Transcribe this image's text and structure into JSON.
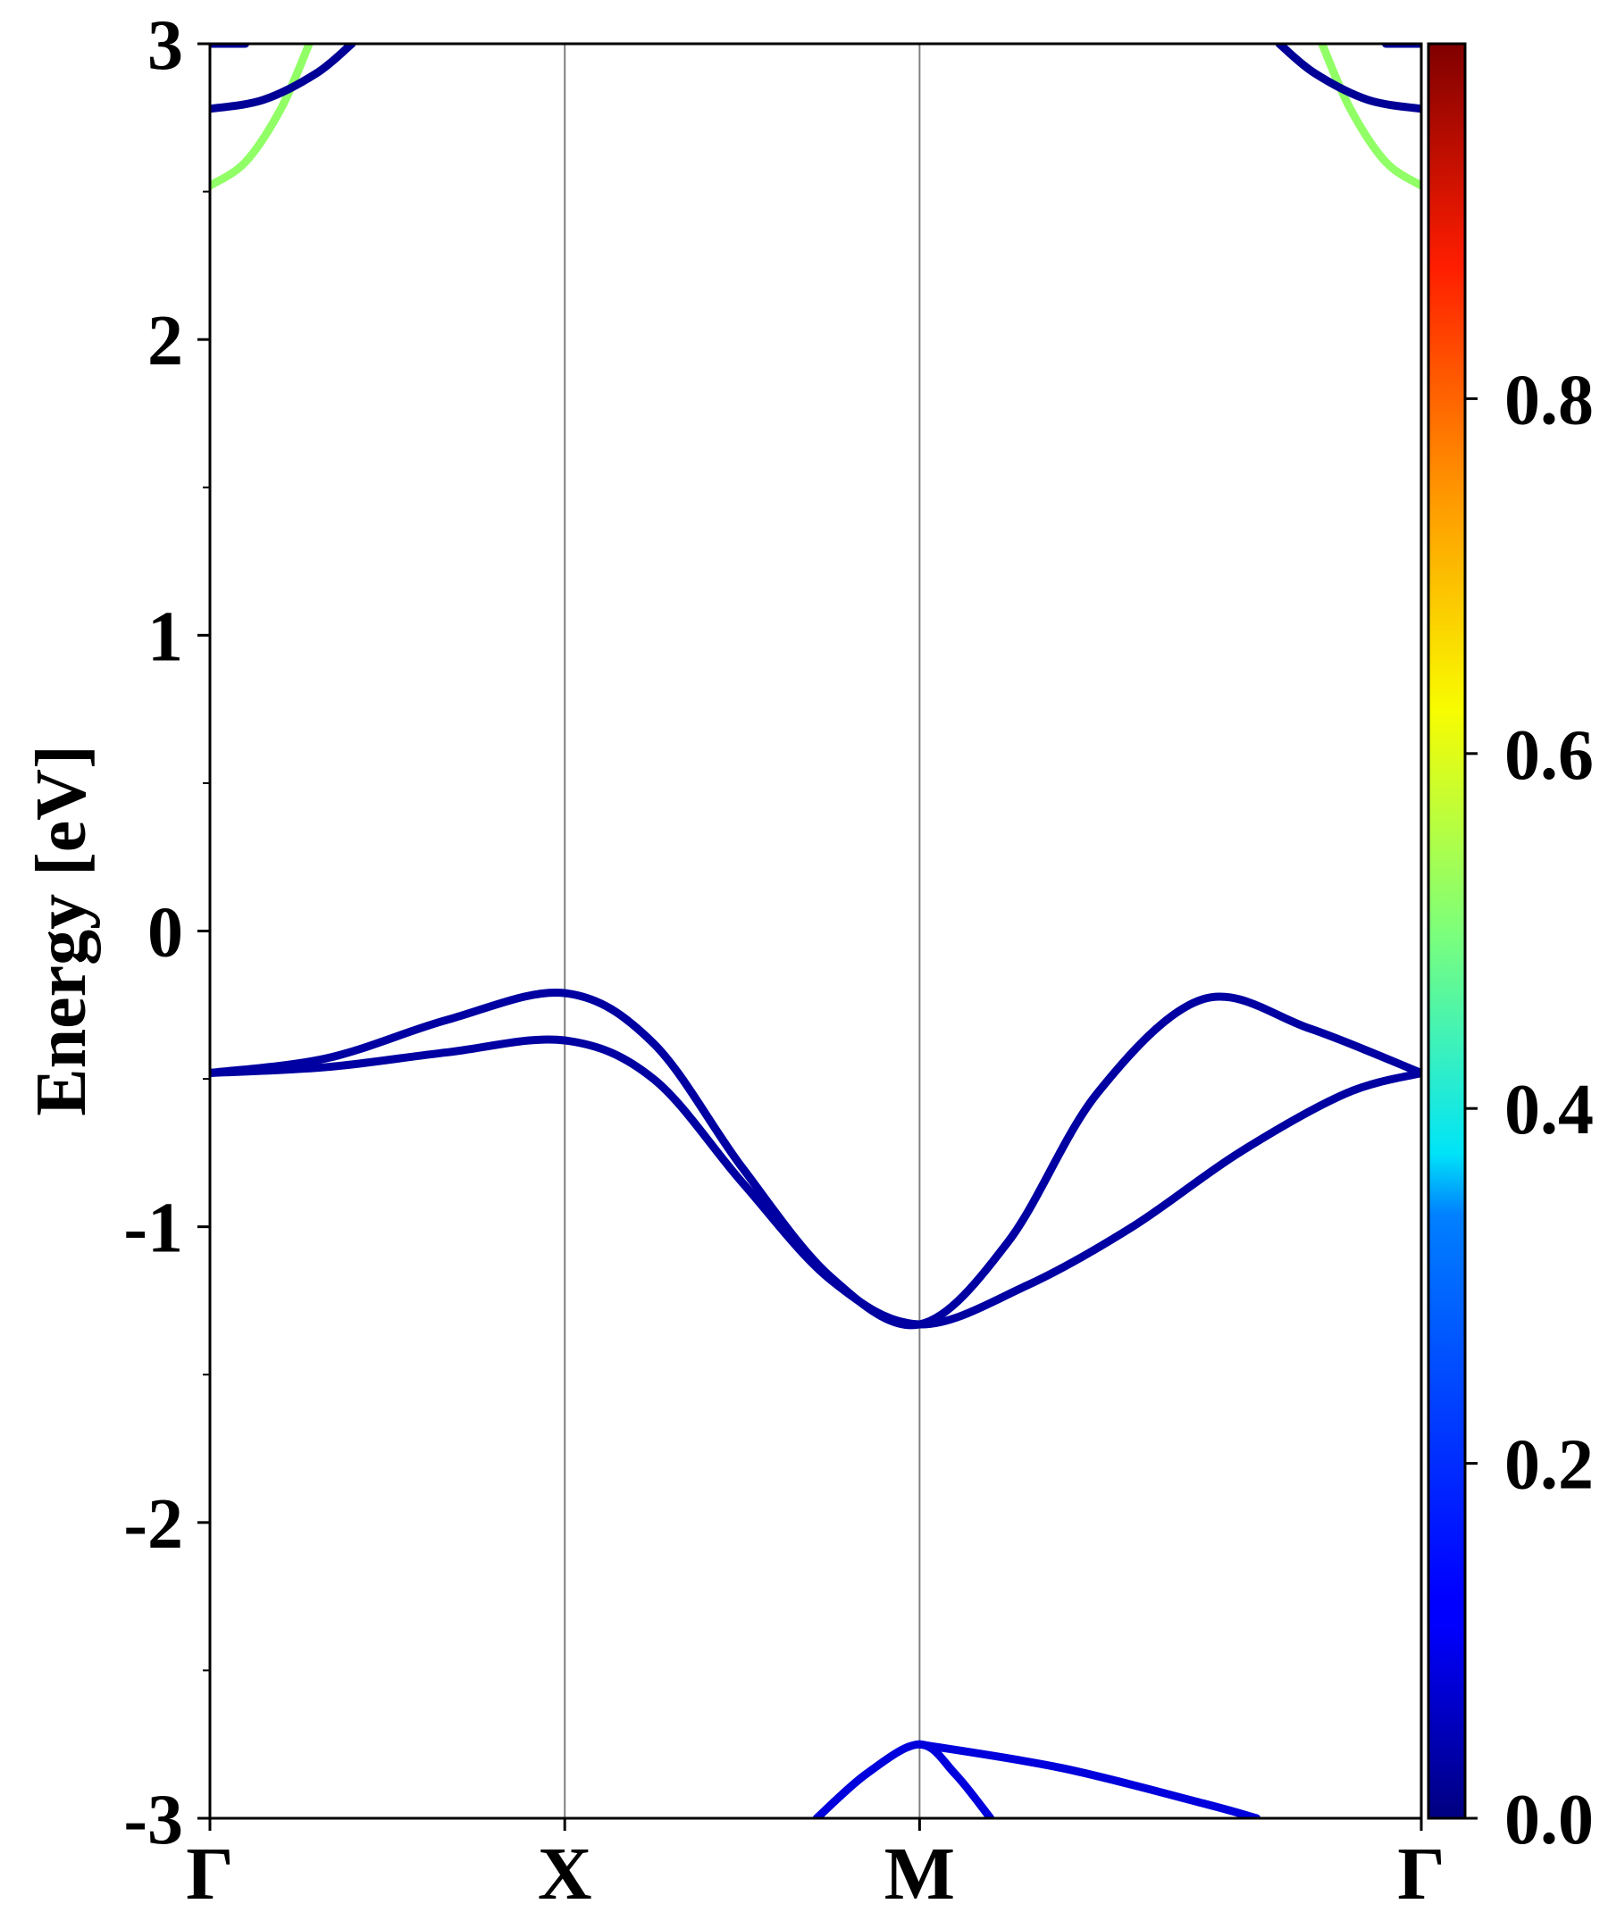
{
  "chart_data": {
    "type": "line",
    "title": "",
    "xlabel": "",
    "ylabel": "Energy [eV]",
    "ylim": [
      -3,
      3
    ],
    "yticks": [
      "3",
      "2",
      "1",
      "0",
      "-1",
      "-2",
      "-3"
    ],
    "x_ticks": [
      {
        "label": "Γ",
        "k": 0.0
      },
      {
        "label": "X",
        "k": 1.0
      },
      {
        "label": "M",
        "k": 2.0
      },
      {
        "label": "Γ",
        "k": 3.414
      }
    ],
    "grid": "vertical lines at high-symmetry points",
    "colorbar": {
      "colormap": "jet",
      "range": [
        0,
        1
      ],
      "tick_labels": [
        "0.0",
        "0.2",
        "0.4",
        "0.6",
        "0.8"
      ]
    },
    "series": [
      {
        "color_value": 0.03,
        "points": [
          [
            0,
            -0.48
          ],
          [
            0.33,
            -0.43
          ],
          [
            0.67,
            -0.3
          ],
          [
            1.0,
            -0.21
          ],
          [
            1.25,
            -0.38
          ],
          [
            1.5,
            -0.8
          ],
          [
            1.75,
            -1.17
          ],
          [
            2.0,
            -1.33
          ],
          [
            2.25,
            -1.05
          ],
          [
            2.5,
            -0.55
          ],
          [
            2.8,
            -0.23
          ],
          [
            3.1,
            -0.33
          ],
          [
            3.414,
            -0.48
          ]
        ]
      },
      {
        "color_value": 0.03,
        "points": [
          [
            0,
            -0.48
          ],
          [
            0.33,
            -0.46
          ],
          [
            0.67,
            -0.41
          ],
          [
            1.0,
            -0.37
          ],
          [
            1.25,
            -0.5
          ],
          [
            1.5,
            -0.85
          ],
          [
            1.75,
            -1.18
          ],
          [
            2.0,
            -1.33
          ],
          [
            2.3,
            -1.2
          ],
          [
            2.6,
            -1.0
          ],
          [
            2.9,
            -0.75
          ],
          [
            3.2,
            -0.55
          ],
          [
            3.414,
            -0.48
          ]
        ]
      },
      {
        "color_value": 0.08,
        "points": [
          [
            1.71,
            -3.0
          ],
          [
            1.85,
            -2.85
          ],
          [
            2.0,
            -2.75
          ],
          [
            2.1,
            -2.85
          ],
          [
            2.2,
            -3.0
          ]
        ]
      },
      {
        "color_value": 0.08,
        "points": [
          [
            2.0,
            -2.75
          ],
          [
            2.4,
            -2.83
          ],
          [
            2.8,
            -2.95
          ],
          [
            2.95,
            -3.0
          ]
        ]
      },
      {
        "color_value": 0.52,
        "points": [
          [
            0,
            2.52
          ],
          [
            0.1,
            2.6
          ],
          [
            0.2,
            2.78
          ],
          [
            0.28,
            3.0
          ]
        ]
      },
      {
        "color_value": 0.02,
        "points": [
          [
            0,
            2.78
          ],
          [
            0.15,
            2.81
          ],
          [
            0.3,
            2.9
          ],
          [
            0.4,
            3.0
          ]
        ]
      },
      {
        "color_value": 0.52,
        "points": [
          [
            3.414,
            2.52
          ],
          [
            3.314,
            2.6
          ],
          [
            3.214,
            2.78
          ],
          [
            3.134,
            3.0
          ]
        ]
      },
      {
        "color_value": 0.02,
        "points": [
          [
            3.414,
            2.78
          ],
          [
            3.264,
            2.81
          ],
          [
            3.114,
            2.9
          ],
          [
            3.014,
            3.0
          ]
        ]
      },
      {
        "color_value": 0.02,
        "points": [
          [
            0,
            3.0
          ],
          [
            0.1,
            3.0
          ]
        ]
      },
      {
        "color_value": 0.02,
        "points": [
          [
            3.314,
            3.0
          ],
          [
            3.414,
            3.0
          ]
        ]
      }
    ]
  }
}
